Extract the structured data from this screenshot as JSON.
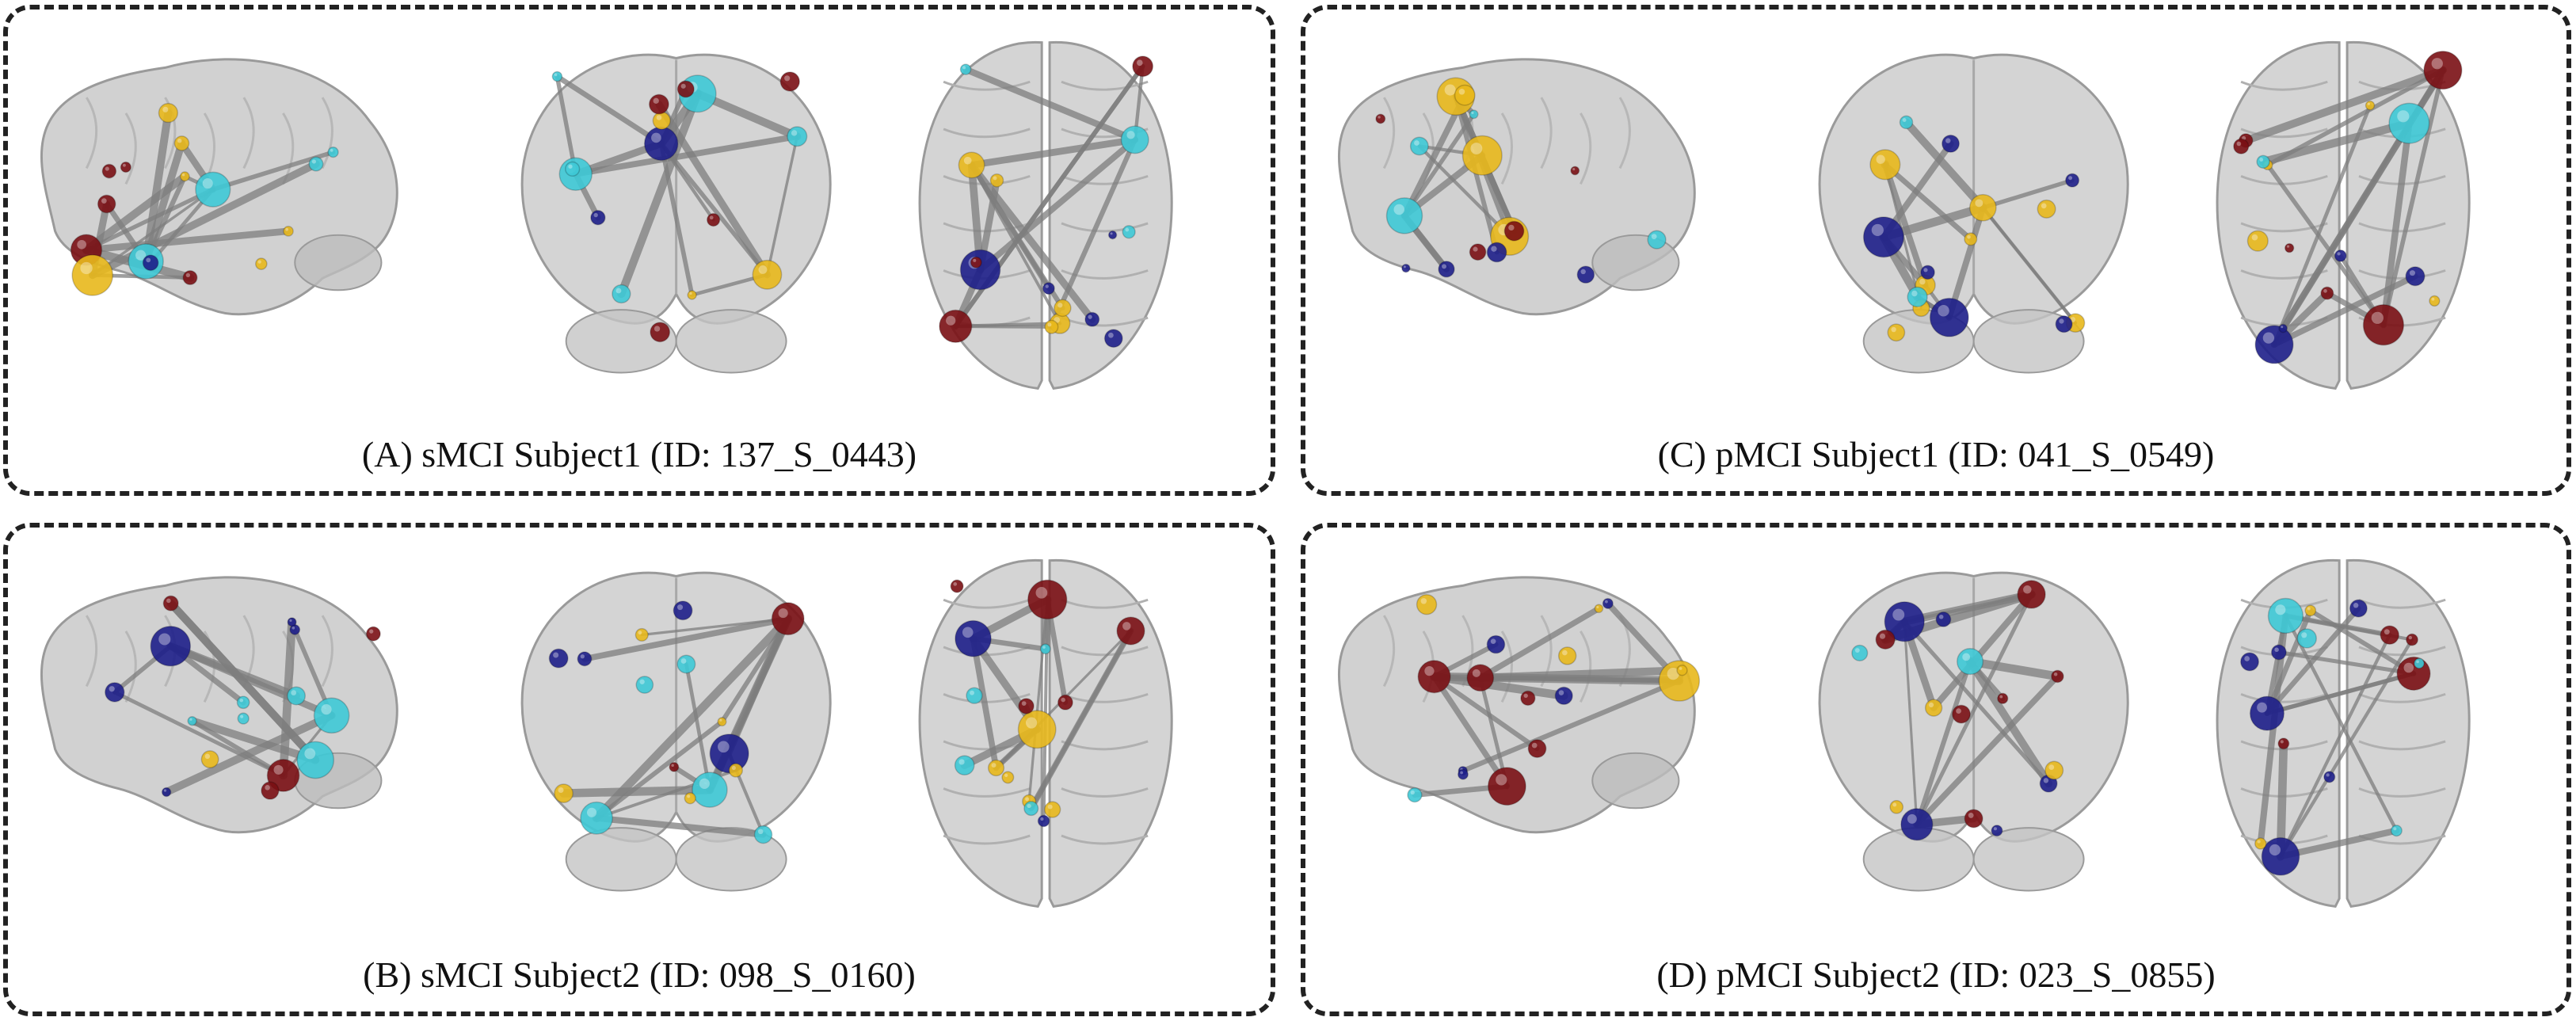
{
  "figure": {
    "panels": [
      {
        "id": "A",
        "caption": "(A) sMCI Subject1 (ID: 137_S_0443)"
      },
      {
        "id": "B",
        "caption": "(B) sMCI Subject2 (ID: 098_S_0160)"
      },
      {
        "id": "C",
        "caption": "(C) pMCI Subject1 (ID: 041_S_0549)"
      },
      {
        "id": "D",
        "caption": "(D) pMCI Subject2 (ID: 023_S_0855)"
      }
    ],
    "views": [
      "sagittal",
      "coronal",
      "axial"
    ],
    "node_colors": {
      "red": "#7a0f14",
      "blue": "#1e1f8a",
      "yellow": "#e8b81c",
      "cyan": "#3ec9d6"
    },
    "brain_fill": "#c9c9c9",
    "edge_color": "#7d7d7d"
  }
}
